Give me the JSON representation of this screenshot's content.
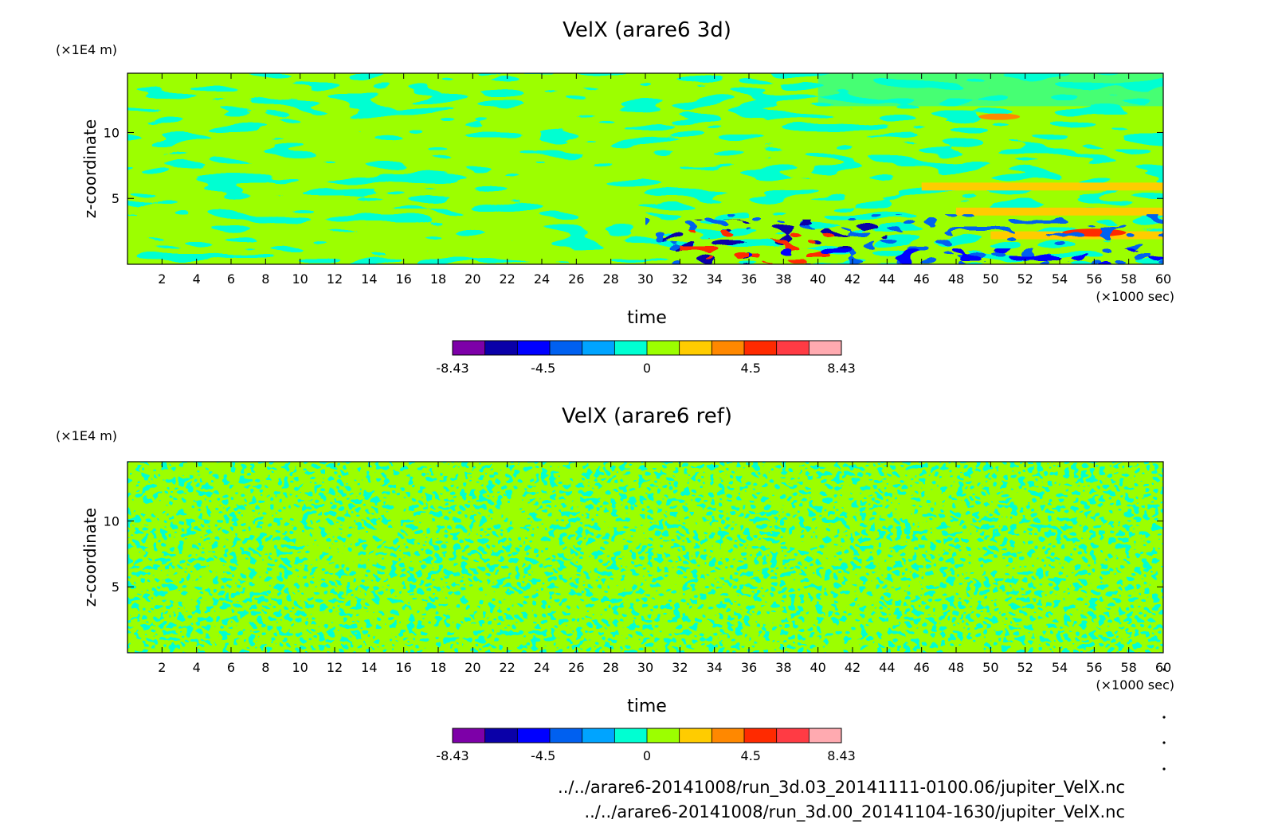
{
  "colors": {
    "levels": [
      "#7d00a8",
      "#0a00a8",
      "#0000ff",
      "#0060f0",
      "#00a4ff",
      "#00ffd2",
      "#9cff00",
      "#ffcc00",
      "#ff8800",
      "#ff2a00",
      "#ff3b44",
      "#ffaab0"
    ]
  },
  "chart_data": [
    {
      "type": "heatmap",
      "title": "VelX (arare6 3d)",
      "xlabel": "time",
      "ylabel": "z-coordinate",
      "x_unit": "(×1000 sec)",
      "y_unit": "(×1E4 m)",
      "xlim": [
        0,
        60
      ],
      "ylim": [
        0,
        14.5
      ],
      "x_ticks": [
        "2",
        "4",
        "6",
        "8",
        "10",
        "12",
        "14",
        "16",
        "18",
        "20",
        "22",
        "24",
        "26",
        "28",
        "30",
        "32",
        "34",
        "36",
        "38",
        "40",
        "42",
        "44",
        "46",
        "48",
        "50",
        "52",
        "54",
        "56",
        "58",
        "60"
      ],
      "y_ticks": [
        "5",
        "10"
      ],
      "colorbar": {
        "min": -8.43,
        "max": 8.43,
        "labels": [
          "-8.43",
          "-4.5",
          "0",
          "4.5",
          "8.43"
        ]
      }
    },
    {
      "type": "heatmap",
      "title": "VelX (arare6 ref)",
      "xlabel": "time",
      "ylabel": "z-coordinate",
      "x_unit": "(×1000 sec)",
      "y_unit": "(×1E4 m)",
      "xlim": [
        0,
        60
      ],
      "ylim": [
        0,
        14.5
      ],
      "x_ticks": [
        "2",
        "4",
        "6",
        "8",
        "10",
        "12",
        "14",
        "16",
        "18",
        "20",
        "22",
        "24",
        "26",
        "28",
        "30",
        "32",
        "34",
        "36",
        "38",
        "40",
        "42",
        "44",
        "46",
        "48",
        "50",
        "52",
        "54",
        "56",
        "58",
        "60"
      ],
      "y_ticks": [
        "5",
        "10"
      ],
      "colorbar": {
        "min": -8.43,
        "max": 8.43,
        "labels": [
          "-8.43",
          "-4.5",
          "0",
          "4.5",
          "8.43"
        ]
      }
    }
  ],
  "files": [
    "../../arare6-20141008/run_3d.03_20141111-0100.06/jupiter_VelX.nc",
    "../../arare6-20141008/run_3d.00_20141104-1630/jupiter_VelX.nc"
  ]
}
